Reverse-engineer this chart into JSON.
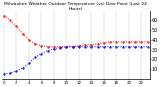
{
  "title": "Milwaukee Weather Outdoor Temperature (vs) Dew Point (Last 24 Hours)",
  "bg_color": "#ffffff",
  "plot_bg": "#ffffff",
  "grid_color": "#bbbbbb",
  "temp_color": "#ff0000",
  "dew_color": "#0000ff",
  "temp_values": [
    65,
    60,
    54,
    46,
    40,
    36,
    34,
    33,
    33,
    33,
    33,
    33,
    34,
    35,
    35,
    36,
    37,
    38,
    38,
    38,
    38,
    38,
    38,
    38
  ],
  "dew_values": [
    5,
    6,
    8,
    11,
    16,
    22,
    26,
    29,
    31,
    32,
    33,
    33,
    33,
    33,
    33,
    33,
    33,
    33,
    33,
    33,
    33,
    33,
    33,
    33
  ],
  "ylim": [
    0,
    70
  ],
  "ytick_vals": [
    10,
    20,
    30,
    40,
    50,
    60
  ],
  "ytick_labels": [
    "10",
    "20",
    "30",
    "40",
    "50",
    "60"
  ],
  "ylabel_fontsize": 3.5,
  "title_fontsize": 3.2,
  "tick_fontsize": 2.8,
  "linewidth": 0.7,
  "markersize": 1.2,
  "grid_linewidth": 0.35,
  "grid_every": 2
}
